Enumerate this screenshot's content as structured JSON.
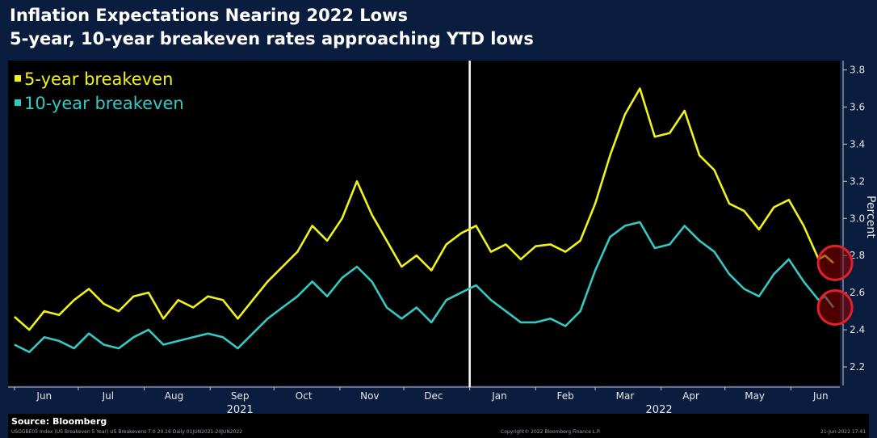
{
  "title": "Inflation Expectations Nearing 2022 Lows",
  "subtitle": "5-year, 10-year breakeven rates approaching YTD lows",
  "source": "Source: Bloomberg",
  "footer": {
    "left": "USGGBE05 Index (US Breakeven 5 Year) US Breakevens 7.0 20.16  Daily 01JUN2021-20JUN2022",
    "center": "Copyright© 2022 Bloomberg Finance L.P.",
    "right": "21-Jun-2022 17:41"
  },
  "colors": {
    "background": "#0b1d3e",
    "plot": "#000000",
    "five_year": "#f2f21a",
    "ten_year": "#35c9c4",
    "divider": "#ffffff",
    "highlight_circle": "#e0202a"
  },
  "chart_data": {
    "type": "line",
    "title": "Inflation Expectations Nearing 2022 Lows",
    "subtitle": "5-year, 10-year breakeven rates approaching YTD lows",
    "ylabel": "Percent",
    "ylim": [
      2.1,
      3.85
    ],
    "xlim": [
      "2021-05-29",
      "2022-06-24"
    ],
    "y_ticks": [
      "2.2",
      "2.4",
      "2.6",
      "2.8",
      "3.0",
      "3.2",
      "3.4",
      "3.6",
      "3.8"
    ],
    "x_month_labels": [
      {
        "label": "Jun",
        "date": "2021-06-15"
      },
      {
        "label": "Jul",
        "date": "2021-07-15"
      },
      {
        "label": "Aug",
        "date": "2021-08-15"
      },
      {
        "label": "Sep",
        "date": "2021-09-15"
      },
      {
        "label": "Oct",
        "date": "2021-10-15"
      },
      {
        "label": "Nov",
        "date": "2021-11-15"
      },
      {
        "label": "Dec",
        "date": "2021-12-15"
      },
      {
        "label": "Jan",
        "date": "2022-01-15"
      },
      {
        "label": "Feb",
        "date": "2022-02-15"
      },
      {
        "label": "Mar",
        "date": "2022-03-15"
      },
      {
        "label": "Apr",
        "date": "2022-04-15"
      },
      {
        "label": "May",
        "date": "2022-05-15"
      },
      {
        "label": "Jun",
        "date": "2022-06-15"
      }
    ],
    "year_labels": [
      {
        "label": "2021",
        "date": "2021-09-15"
      },
      {
        "label": "2022",
        "date": "2022-03-31"
      }
    ],
    "year_divider": "2022-01-01",
    "legend_position": "top-left",
    "grid": false,
    "series": [
      {
        "name": "5-year breakeven",
        "color": "#f2f21a",
        "x": [
          "2021-06-01",
          "2021-06-08",
          "2021-06-15",
          "2021-06-22",
          "2021-06-29",
          "2021-07-06",
          "2021-07-13",
          "2021-07-20",
          "2021-07-27",
          "2021-08-03",
          "2021-08-10",
          "2021-08-17",
          "2021-08-24",
          "2021-08-31",
          "2021-09-07",
          "2021-09-14",
          "2021-09-21",
          "2021-09-28",
          "2021-10-05",
          "2021-10-12",
          "2021-10-19",
          "2021-10-26",
          "2021-11-02",
          "2021-11-09",
          "2021-11-16",
          "2021-11-23",
          "2021-11-30",
          "2021-12-07",
          "2021-12-14",
          "2021-12-21",
          "2021-12-28",
          "2022-01-04",
          "2022-01-11",
          "2022-01-18",
          "2022-01-25",
          "2022-02-01",
          "2022-02-08",
          "2022-02-15",
          "2022-02-22",
          "2022-03-01",
          "2022-03-08",
          "2022-03-15",
          "2022-03-22",
          "2022-03-29",
          "2022-04-05",
          "2022-04-12",
          "2022-04-19",
          "2022-04-26",
          "2022-05-03",
          "2022-05-10",
          "2022-05-17",
          "2022-05-24",
          "2022-05-31",
          "2022-06-07",
          "2022-06-14",
          "2022-06-17",
          "2022-06-21"
        ],
        "y": [
          2.47,
          2.4,
          2.5,
          2.48,
          2.56,
          2.62,
          2.54,
          2.5,
          2.58,
          2.6,
          2.46,
          2.56,
          2.52,
          2.58,
          2.56,
          2.46,
          2.56,
          2.66,
          2.74,
          2.82,
          2.96,
          2.88,
          3.0,
          3.2,
          3.02,
          2.88,
          2.74,
          2.8,
          2.72,
          2.86,
          2.92,
          2.96,
          2.82,
          2.86,
          2.78,
          2.85,
          2.86,
          2.82,
          2.88,
          3.08,
          3.34,
          3.56,
          3.7,
          3.44,
          3.46,
          3.58,
          3.34,
          3.26,
          3.08,
          3.04,
          2.94,
          3.06,
          3.1,
          2.96,
          2.78,
          2.8,
          2.76
        ]
      },
      {
        "name": "10-year breakeven",
        "color": "#35c9c4",
        "x": [
          "2021-06-01",
          "2021-06-08",
          "2021-06-15",
          "2021-06-22",
          "2021-06-29",
          "2021-07-06",
          "2021-07-13",
          "2021-07-20",
          "2021-07-27",
          "2021-08-03",
          "2021-08-10",
          "2021-08-17",
          "2021-08-24",
          "2021-08-31",
          "2021-09-07",
          "2021-09-14",
          "2021-09-21",
          "2021-09-28",
          "2021-10-05",
          "2021-10-12",
          "2021-10-19",
          "2021-10-26",
          "2021-11-02",
          "2021-11-09",
          "2021-11-16",
          "2021-11-23",
          "2021-11-30",
          "2021-12-07",
          "2021-12-14",
          "2021-12-21",
          "2021-12-28",
          "2022-01-04",
          "2022-01-11",
          "2022-01-18",
          "2022-01-25",
          "2022-02-01",
          "2022-02-08",
          "2022-02-15",
          "2022-02-22",
          "2022-03-01",
          "2022-03-08",
          "2022-03-15",
          "2022-03-22",
          "2022-03-29",
          "2022-04-05",
          "2022-04-12",
          "2022-04-19",
          "2022-04-26",
          "2022-05-03",
          "2022-05-10",
          "2022-05-17",
          "2022-05-24",
          "2022-05-31",
          "2022-06-07",
          "2022-06-14",
          "2022-06-17",
          "2022-06-21"
        ],
        "y": [
          2.32,
          2.28,
          2.36,
          2.34,
          2.3,
          2.38,
          2.32,
          2.3,
          2.36,
          2.4,
          2.32,
          2.34,
          2.36,
          2.38,
          2.36,
          2.3,
          2.38,
          2.46,
          2.52,
          2.58,
          2.66,
          2.58,
          2.68,
          2.74,
          2.66,
          2.52,
          2.46,
          2.52,
          2.44,
          2.56,
          2.6,
          2.64,
          2.56,
          2.5,
          2.44,
          2.44,
          2.46,
          2.42,
          2.5,
          2.72,
          2.9,
          2.96,
          2.98,
          2.84,
          2.86,
          2.96,
          2.88,
          2.82,
          2.7,
          2.62,
          2.58,
          2.7,
          2.78,
          2.66,
          2.56,
          2.58,
          2.52
        ]
      }
    ]
  }
}
